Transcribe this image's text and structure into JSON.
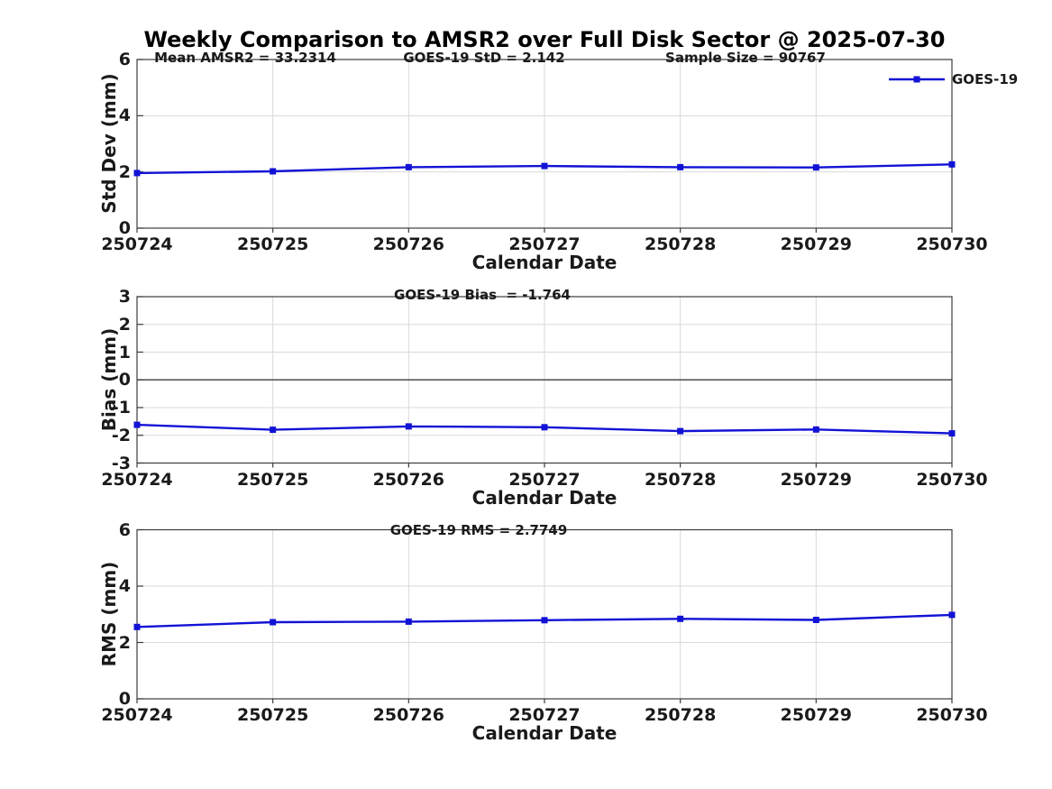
{
  "title": "Weekly Comparison to AMSR2 over Full Disk Sector @ 2025-07-30",
  "chart_data": {
    "type": "line",
    "title": "Weekly Comparison to AMSR2 over Full Disk Sector @ 2025-07-30",
    "categories": [
      "250724",
      "250725",
      "250726",
      "250727",
      "250728",
      "250729",
      "250730"
    ],
    "legend": {
      "label": "GOES-19",
      "position": "top-right",
      "box": false
    },
    "grid": true,
    "marker": "square",
    "colors": {
      "series": "#1212d6",
      "grid": "#d9d9d9",
      "axis": "#3c3c3c",
      "zero_line": "#4d4d4d",
      "text": "#1a1a1a"
    },
    "panels": [
      {
        "ylabel": "Std Dev (mm)",
        "xlabel": "Calendar Date",
        "ylim": [
          0,
          6
        ],
        "yticks": [
          0,
          2,
          4,
          6
        ],
        "series_name": "GOES-19",
        "values": [
          1.96,
          2.02,
          2.17,
          2.21,
          2.17,
          2.16,
          2.27
        ],
        "annotations": [
          {
            "text": "Mean AMSR2 = 33.2314"
          },
          {
            "text": "GOES-19 StD = 2.142"
          },
          {
            "text": "Sample Size = 90767"
          }
        ]
      },
      {
        "ylabel": "Bias (mm)",
        "xlabel": "Calendar Date",
        "ylim": [
          -3,
          3
        ],
        "yticks": [
          -3,
          -2,
          -1,
          0,
          1,
          2,
          3
        ],
        "zero_line": true,
        "series_name": "GOES-19",
        "values": [
          -1.62,
          -1.8,
          -1.68,
          -1.71,
          -1.85,
          -1.79,
          -1.93
        ],
        "annotations": [
          {
            "text": "GOES-19 Bias  = -1.764"
          }
        ]
      },
      {
        "ylabel": "RMS (mm)",
        "xlabel": "Calendar Date",
        "ylim": [
          0,
          6
        ],
        "yticks": [
          0,
          2,
          4,
          6
        ],
        "series_name": "GOES-19",
        "values": [
          2.55,
          2.72,
          2.74,
          2.79,
          2.84,
          2.8,
          2.98
        ],
        "annotations": [
          {
            "text": "GOES-19 RMS = 2.7749"
          }
        ]
      }
    ]
  }
}
